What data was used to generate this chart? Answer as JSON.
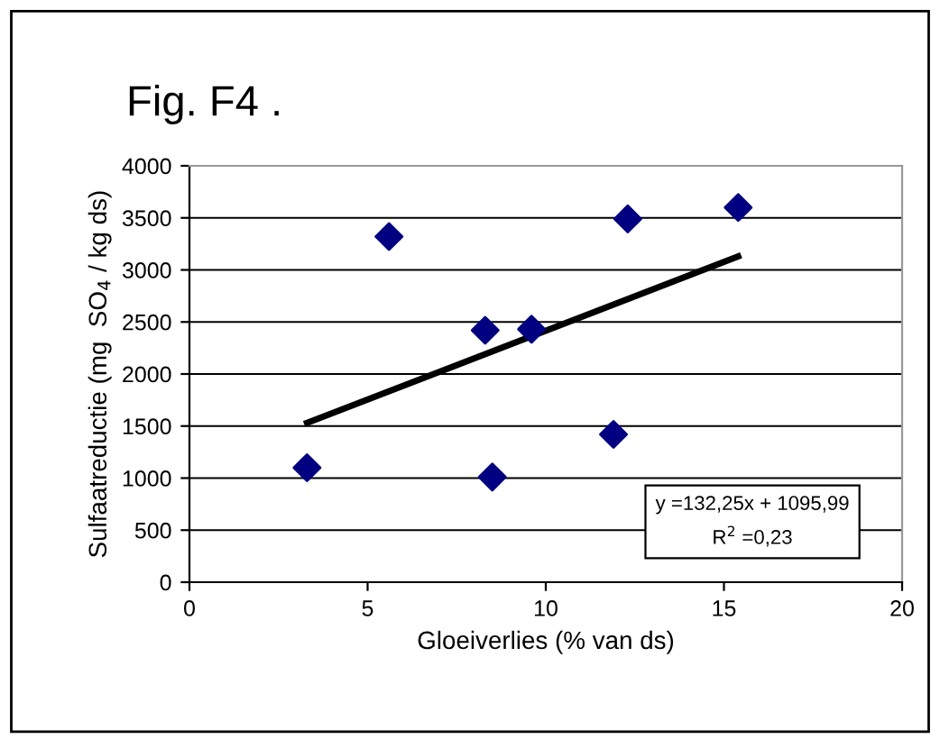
{
  "chart_data": {
    "type": "scatter",
    "title": "Fig. F4 .",
    "xlabel": "Gloeiverlies (% van ds)",
    "ylabel": "Sulfaatreductie (mg  SO$_{4}$ / kg ds)",
    "annotations": [
      "y =132,25x + 1095,99",
      "R$^{2}$ =0,23"
    ],
    "series": [
      {
        "color": "#000080",
        "marker": "diamond",
        "x": [
          3.3,
          5.6,
          8.3,
          8.5,
          9.6,
          11.9,
          12.3,
          15.4
        ],
        "values": [
          1100,
          3320,
          2420,
          1010,
          2430,
          1420,
          3490,
          3600
        ]
      },
      {
        "type": "line",
        "color": "#000000",
        "marker": "none",
        "line_style": "solid",
        "x": [
          3.3,
          15.4
        ],
        "values": [
          1530,
          3130
        ]
      }
    ],
    "xlim": [
      0,
      20
    ],
    "xticks": [
      0,
      5,
      10,
      15,
      20
    ],
    "ylim": [
      0,
      4000
    ],
    "yticks": [
      0,
      500,
      1000,
      1500,
      2000,
      2500,
      3000,
      3500,
      4000
    ],
    "grid": "y",
    "legend": false
  }
}
